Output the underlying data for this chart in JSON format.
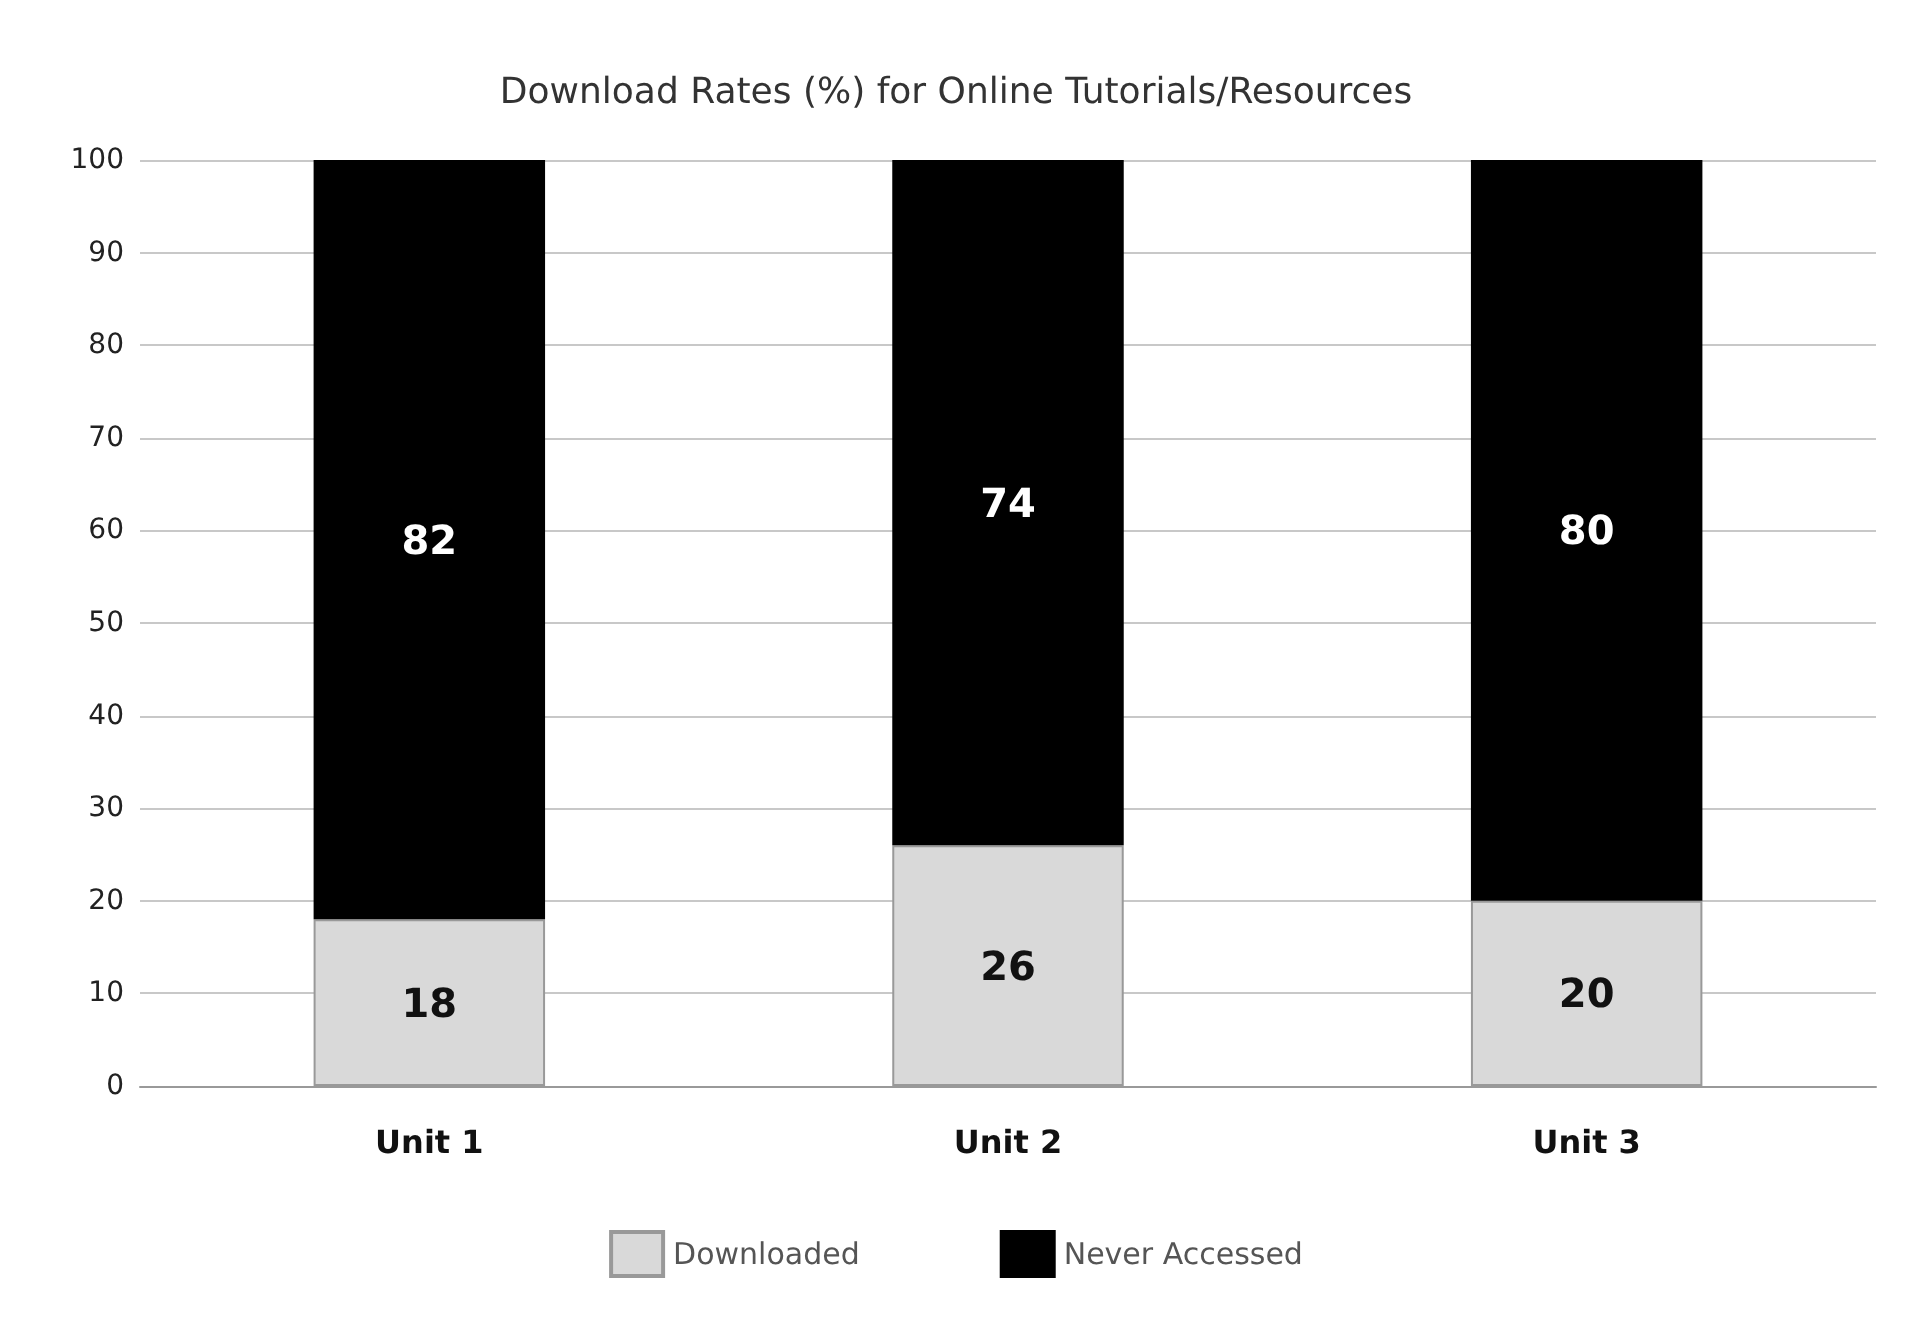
{
  "chart_data": {
    "type": "bar",
    "title": "Download Rates (%) for Online Tutorials/Resources",
    "categories": [
      "Unit 1",
      "Unit 2",
      "Unit 3"
    ],
    "stacked": true,
    "series": [
      {
        "name": "Downloaded",
        "color": "#d9d9d9",
        "values": [
          18,
          26,
          20
        ]
      },
      {
        "name": "Never Accessed",
        "color": "#000000",
        "values": [
          82,
          74,
          80
        ]
      }
    ],
    "ylim": [
      0,
      100
    ],
    "yticks": [
      0,
      10,
      20,
      30,
      40,
      50,
      60,
      70,
      80,
      90,
      100
    ],
    "grid": "y",
    "legend": "bottom",
    "data_labels": true
  }
}
